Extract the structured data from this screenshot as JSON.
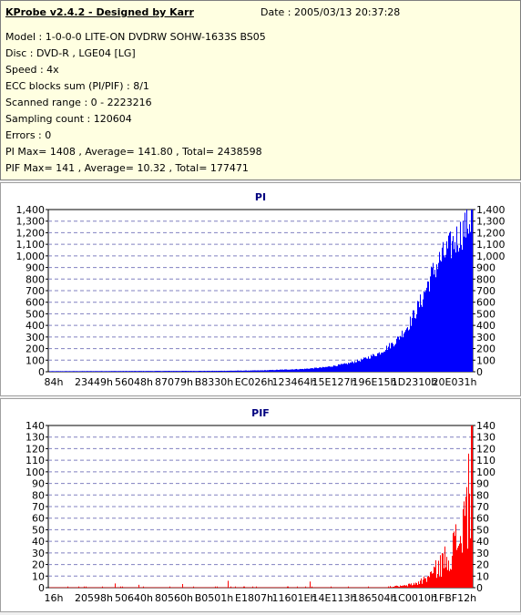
{
  "header": {
    "title": "KProbe v2.4.2 - Designed by Karr",
    "date": "Date : 2005/03/13 20:37:28",
    "lines": [
      "Model : 1-0-0-0 LITE-ON DVDRW SOHW-1633S BS05",
      "Disc : DVD-R , LGE04 [LG]",
      "Speed : 4x",
      "ECC blocks sum (PI/PIF) : 8/1",
      "Scanned range : 0 - 2223216",
      "Sampling count : 120604",
      "Errors : 0",
      "PI Max= 1408 , Average= 141.80 , Total= 2438598",
      "PIF Max= 141 , Average= 10.32 , Total= 177471"
    ]
  },
  "chart_data": [
    {
      "type": "bar",
      "title": "PI",
      "color": "#0000ff",
      "ylim": [
        0,
        1400
      ],
      "yticks": [
        0,
        100,
        200,
        300,
        400,
        500,
        600,
        700,
        800,
        900,
        1000,
        1100,
        1200,
        1300,
        1400
      ],
      "ytick_labels": [
        "0",
        "100",
        "200",
        "300",
        "400",
        "500",
        "600",
        "700",
        "800",
        "900",
        "1,000",
        "1,100",
        "1,200",
        "1,300",
        "1,400"
      ],
      "xtick_labels": [
        "84h",
        "23449h",
        "56048h",
        "87079h",
        "B8330h",
        "EC026h",
        "123464h",
        "15E127h",
        "196E15h",
        "1D2310h",
        "20E031h"
      ],
      "grid": true,
      "profile_x": [
        0,
        0.4,
        0.5,
        0.6,
        0.65,
        0.7,
        0.74,
        0.78,
        0.82,
        0.85,
        0.88,
        0.9,
        0.92,
        0.94,
        0.96,
        0.98,
        1.0
      ],
      "profile_y": [
        5,
        8,
        12,
        25,
        40,
        70,
        110,
        170,
        280,
        430,
        650,
        850,
        1000,
        1100,
        1200,
        1300,
        1408
      ],
      "max": 1408,
      "average": 141.8,
      "total": 2438598
    },
    {
      "type": "bar",
      "title": "PIF",
      "color": "#ff0000",
      "ylim": [
        0,
        140
      ],
      "yticks": [
        0,
        10,
        20,
        30,
        40,
        50,
        60,
        70,
        80,
        90,
        100,
        110,
        120,
        130,
        140
      ],
      "ytick_labels": [
        "0",
        "10",
        "20",
        "30",
        "40",
        "50",
        "60",
        "70",
        "80",
        "90",
        "100",
        "110",
        "120",
        "130",
        "140"
      ],
      "xtick_labels": [
        "16h",
        "20598h",
        "50640h",
        "80560h",
        "B0501h",
        "E1807h",
        "11601Eh",
        "14E113h",
        "186504h",
        "1C0010h",
        "1FBF12h"
      ],
      "grid": true,
      "profile_x": [
        0,
        0.8,
        0.84,
        0.87,
        0.89,
        0.91,
        0.93,
        0.95,
        0.97,
        0.99,
        1.0
      ],
      "profile_y": [
        0.5,
        1,
        2,
        5,
        10,
        18,
        28,
        40,
        55,
        90,
        141
      ],
      "max": 141,
      "average": 10.32,
      "total": 177471
    }
  ]
}
